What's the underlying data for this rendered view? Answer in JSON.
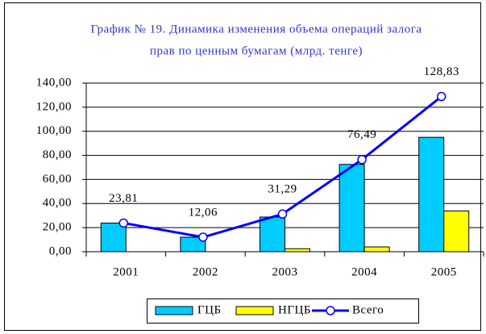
{
  "chart_data": {
    "type": "bar_line",
    "title": [
      "График № 19. Динамика изменения объема операций залога",
      "прав по ценным бумагам (млрд. тенге)"
    ],
    "categories": [
      "2001",
      "2002",
      "2003",
      "2004",
      "2005"
    ],
    "series": [
      {
        "name": "ГЦБ",
        "type": "bar",
        "color": "#00ccff",
        "values": [
          23.81,
          12.06,
          28.8,
          72.5,
          95.0
        ]
      },
      {
        "name": "НГЦБ",
        "type": "bar",
        "color": "#ffff00",
        "values": [
          0,
          0,
          2.49,
          3.99,
          33.83
        ]
      },
      {
        "name": "Всего",
        "type": "line",
        "color": "#0000ff",
        "values": [
          23.81,
          12.06,
          31.29,
          76.49,
          128.83
        ],
        "value_labels": [
          "23,81",
          "12,06",
          "31,29",
          "76,49",
          "128,83"
        ]
      }
    ],
    "ylim": [
      0,
      140
    ],
    "yticks": [
      {
        "value": 0,
        "label": "0,00"
      },
      {
        "value": 20,
        "label": "20,00"
      },
      {
        "value": 40,
        "label": "40,00"
      },
      {
        "value": 60,
        "label": "60,00"
      },
      {
        "value": 80,
        "label": "80,00"
      },
      {
        "value": 100,
        "label": "100,00"
      },
      {
        "value": 120,
        "label": "120,00"
      },
      {
        "value": 140,
        "label": "140,00"
      }
    ],
    "grid": true,
    "legend": "bottom"
  }
}
